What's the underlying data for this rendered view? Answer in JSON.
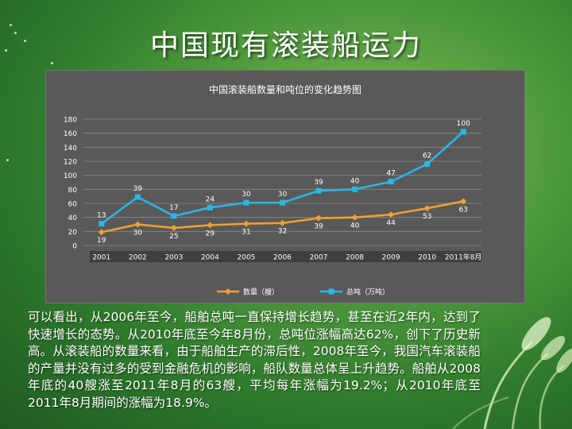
{
  "slide": {
    "title": "中国现有滚装船运力",
    "paragraph": "可以看出，从2006年至今，船舶总吨一直保持增长趋势，甚至在近2年内，达到了快速增长的态势。从2010年底至今年8月份，总吨位涨幅高达62%，创下了历史新高。从滚装船的数量来看，由于船舶生产的滞后性，2008年至今，我国汽车滚装船的产量并没有过多的受到金融危机的影响，船队数量总体呈上升趋势。船舶从2008年底的40艘涨至2011年8月的63艘，平均每年涨幅为19.2%；从2010年底至2011年8月期间的涨幅为18.9%。"
  },
  "chart_data": {
    "type": "line",
    "title": "中国滚装船数量和吨位的变化趋势图",
    "categories": [
      "2001",
      "2002",
      "2003",
      "2004",
      "2005",
      "2006",
      "2007",
      "2008",
      "2009",
      "2010",
      "2011年8月"
    ],
    "ylim": [
      0,
      180
    ],
    "yticks": [
      0,
      20,
      40,
      60,
      80,
      100,
      120,
      140,
      160,
      180
    ],
    "grid": true,
    "legend_position": "bottom",
    "series": [
      {
        "name": "数量（艘）",
        "color": "#f0a030",
        "marker": "diamond",
        "values": [
          19,
          30,
          25,
          29,
          31,
          32,
          39,
          40,
          44,
          53,
          63
        ],
        "labels": [
          "19",
          "30",
          "25",
          "29",
          "31",
          "32",
          "39",
          "40",
          "44",
          "53",
          "63"
        ]
      },
      {
        "name": "总吨（万吨）",
        "color": "#29b6e8",
        "marker": "square",
        "values": [
          31,
          69,
          42,
          54,
          61,
          61,
          78,
          80,
          91,
          116,
          162
        ],
        "labels": [
          "13",
          "39",
          "17",
          "24",
          "30",
          "30",
          "39",
          "40",
          "47",
          "62",
          "100"
        ]
      }
    ]
  }
}
